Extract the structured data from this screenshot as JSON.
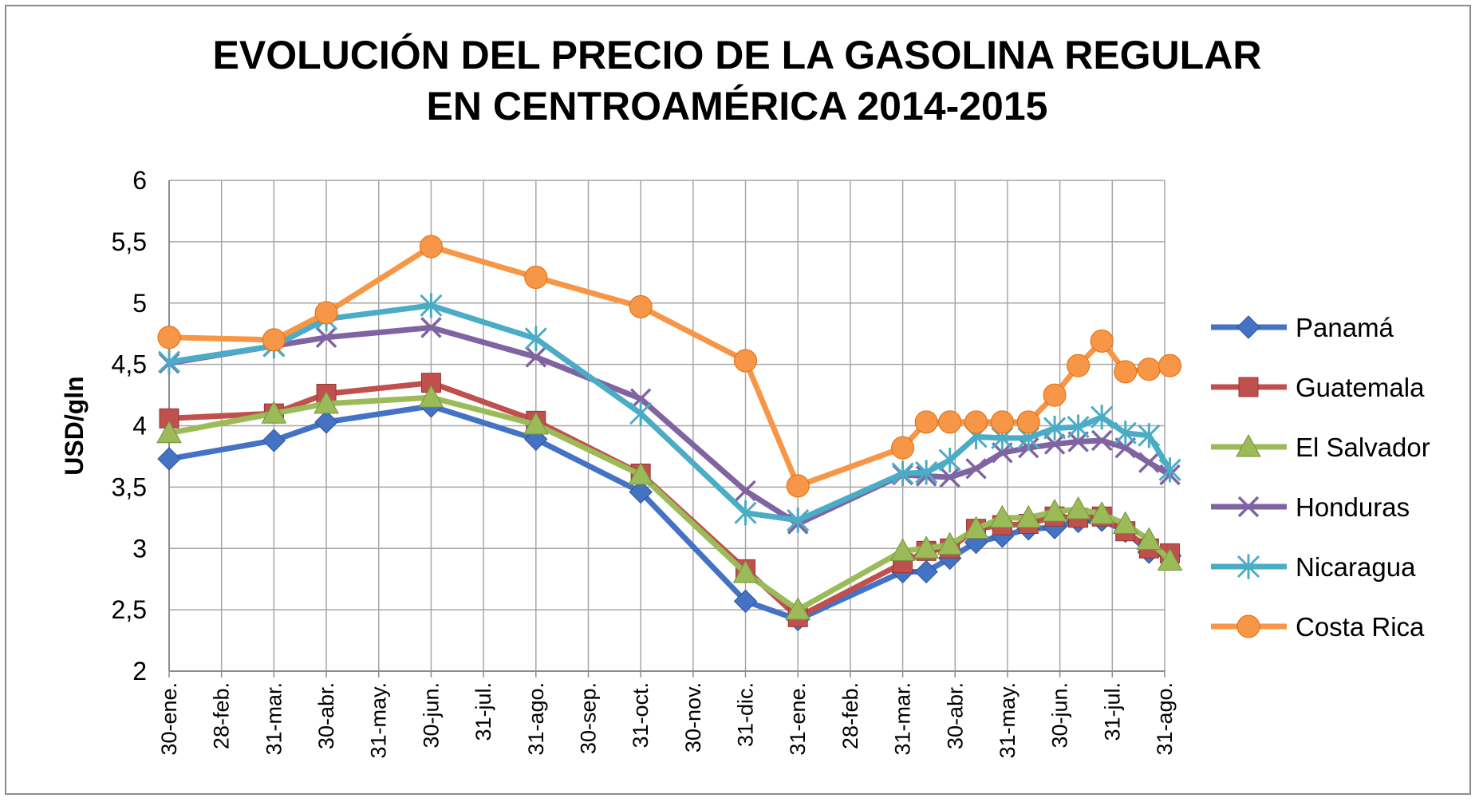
{
  "chart_data": {
    "type": "line",
    "title": "EVOLUCIÓN DEL PRECIO DE LA GASOLINA REGULAR EN CENTROAMÉRICA 2014-2015",
    "title_lines": [
      "EVOLUCIÓN DEL PRECIO DE LA GASOLINA REGULAR",
      "EN CENTROAMÉRICA 2014-2015"
    ],
    "xlabel": "",
    "ylabel": "USD/gln",
    "ylim": [
      2,
      6
    ],
    "yticks": [
      2,
      2.5,
      3,
      3.5,
      4,
      4.5,
      5,
      5.5,
      6
    ],
    "ytick_labels": [
      "2",
      "2,5",
      "3",
      "3,5",
      "4",
      "4,5",
      "5",
      "5,5",
      "6"
    ],
    "grid": true,
    "legend_position": "right",
    "x_axis_labels": [
      "30-ene.",
      "28-feb.",
      "31-mar.",
      "30-abr.",
      "31-may.",
      "30-jun.",
      "31-jul.",
      "31-ago.",
      "30-sep.",
      "31-oct.",
      "30-nov.",
      "31-dic.",
      "31-ene.",
      "28-feb.",
      "31-mar.",
      "30-abr.",
      "31-may.",
      "30-jun.",
      "31-jul.",
      "31-ago."
    ],
    "series": [
      {
        "name": "Panamá",
        "color": "#4472c4",
        "marker": "diamond",
        "points": [
          [
            0,
            3.73
          ],
          [
            2,
            3.88
          ],
          [
            3,
            4.03
          ],
          [
            5,
            4.16
          ],
          [
            7,
            3.89
          ],
          [
            9,
            3.46
          ],
          [
            11,
            2.57
          ],
          [
            12,
            2.42
          ],
          [
            14,
            2.81
          ],
          [
            14.45,
            2.81
          ],
          [
            14.9,
            2.92
          ],
          [
            15.4,
            3.05
          ],
          [
            15.9,
            3.1
          ],
          [
            16.4,
            3.16
          ],
          [
            16.9,
            3.17
          ],
          [
            17.35,
            3.22
          ],
          [
            17.8,
            3.23
          ],
          [
            18.25,
            3.14
          ],
          [
            18.7,
            2.97
          ],
          [
            19.1,
            2.94
          ]
        ]
      },
      {
        "name": "Guatemala",
        "color": "#c0504d",
        "marker": "square",
        "points": [
          [
            0,
            4.06
          ],
          [
            2,
            4.1
          ],
          [
            3,
            4.26
          ],
          [
            5,
            4.35
          ],
          [
            7,
            4.04
          ],
          [
            9,
            3.61
          ],
          [
            11,
            2.83
          ],
          [
            12,
            2.44
          ],
          [
            14,
            2.88
          ],
          [
            14.45,
            2.98
          ],
          [
            14.9,
            3.0
          ],
          [
            15.4,
            3.16
          ],
          [
            15.9,
            3.19
          ],
          [
            16.4,
            3.2
          ],
          [
            16.9,
            3.26
          ],
          [
            17.35,
            3.25
          ],
          [
            17.8,
            3.26
          ],
          [
            18.25,
            3.14
          ],
          [
            18.7,
            3.0
          ],
          [
            19.1,
            2.96
          ]
        ]
      },
      {
        "name": "El Salvador",
        "color": "#9bbb59",
        "marker": "triangle",
        "points": [
          [
            0,
            3.94
          ],
          [
            2,
            4.1
          ],
          [
            3,
            4.18
          ],
          [
            5,
            4.23
          ],
          [
            7,
            4.01
          ],
          [
            9,
            3.6
          ],
          [
            11,
            2.8
          ],
          [
            12,
            2.5
          ],
          [
            14,
            2.98
          ],
          [
            14.45,
            3.0
          ],
          [
            14.9,
            3.03
          ],
          [
            15.4,
            3.16
          ],
          [
            15.9,
            3.25
          ],
          [
            16.4,
            3.25
          ],
          [
            16.9,
            3.3
          ],
          [
            17.35,
            3.32
          ],
          [
            17.8,
            3.28
          ],
          [
            18.25,
            3.2
          ],
          [
            18.7,
            3.07
          ],
          [
            19.1,
            2.9
          ]
        ]
      },
      {
        "name": "Honduras",
        "color": "#8064a2",
        "marker": "x",
        "points": [
          [
            0,
            4.51
          ],
          [
            2,
            4.65
          ],
          [
            3,
            4.72
          ],
          [
            5,
            4.8
          ],
          [
            7,
            4.56
          ],
          [
            9,
            4.22
          ],
          [
            11,
            3.47
          ],
          [
            12,
            3.2
          ],
          [
            14,
            3.6
          ],
          [
            14.45,
            3.59
          ],
          [
            14.9,
            3.58
          ],
          [
            15.4,
            3.65
          ],
          [
            15.9,
            3.78
          ],
          [
            16.4,
            3.82
          ],
          [
            16.9,
            3.85
          ],
          [
            17.35,
            3.87
          ],
          [
            17.8,
            3.88
          ],
          [
            18.25,
            3.82
          ],
          [
            18.7,
            3.7
          ],
          [
            19.1,
            3.6
          ]
        ]
      },
      {
        "name": "Nicaragua",
        "color": "#4bacc6",
        "marker": "star",
        "points": [
          [
            0,
            4.52
          ],
          [
            2,
            4.65
          ],
          [
            3,
            4.87
          ],
          [
            5,
            4.98
          ],
          [
            7,
            4.71
          ],
          [
            9,
            4.1
          ],
          [
            11,
            3.29
          ],
          [
            12,
            3.23
          ],
          [
            14,
            3.61
          ],
          [
            14.45,
            3.62
          ],
          [
            14.9,
            3.72
          ],
          [
            15.4,
            3.91
          ],
          [
            15.9,
            3.9
          ],
          [
            16.4,
            3.9
          ],
          [
            16.9,
            3.98
          ],
          [
            17.35,
            3.99
          ],
          [
            17.8,
            4.07
          ],
          [
            18.25,
            3.94
          ],
          [
            18.7,
            3.92
          ],
          [
            19.1,
            3.64
          ]
        ]
      },
      {
        "name": "Costa Rica",
        "color": "#f79646",
        "marker": "circle",
        "points": [
          [
            0,
            4.72
          ],
          [
            2,
            4.7
          ],
          [
            3,
            4.92
          ],
          [
            5,
            5.46
          ],
          [
            7,
            5.21
          ],
          [
            9,
            4.97
          ],
          [
            11,
            4.53
          ],
          [
            12,
            3.51
          ],
          [
            14,
            3.82
          ],
          [
            14.45,
            4.03
          ],
          [
            14.9,
            4.03
          ],
          [
            15.4,
            4.03
          ],
          [
            15.9,
            4.03
          ],
          [
            16.4,
            4.03
          ],
          [
            16.9,
            4.25
          ],
          [
            17.35,
            4.49
          ],
          [
            17.8,
            4.69
          ],
          [
            18.25,
            4.44
          ],
          [
            18.7,
            4.46
          ],
          [
            19.1,
            4.49
          ]
        ]
      }
    ]
  }
}
